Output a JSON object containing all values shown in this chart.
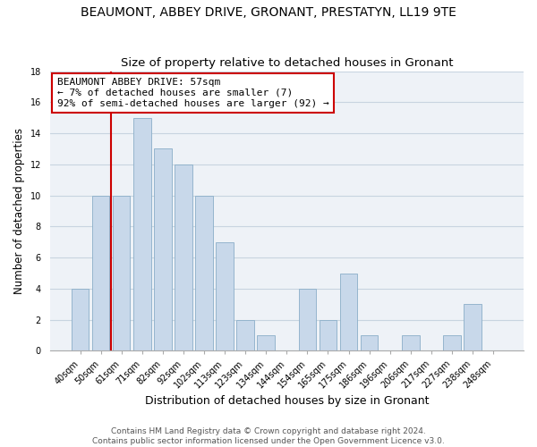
{
  "title": "BEAUMONT, ABBEY DRIVE, GRONANT, PRESTATYN, LL19 9TE",
  "subtitle": "Size of property relative to detached houses in Gronant",
  "xlabel": "Distribution of detached houses by size in Gronant",
  "ylabel": "Number of detached properties",
  "bar_labels": [
    "40sqm",
    "50sqm",
    "61sqm",
    "71sqm",
    "82sqm",
    "92sqm",
    "102sqm",
    "113sqm",
    "123sqm",
    "134sqm",
    "144sqm",
    "154sqm",
    "165sqm",
    "175sqm",
    "186sqm",
    "196sqm",
    "206sqm",
    "217sqm",
    "227sqm",
    "238sqm",
    "248sqm"
  ],
  "bar_values": [
    4,
    10,
    10,
    15,
    13,
    12,
    10,
    7,
    2,
    1,
    0,
    4,
    2,
    5,
    1,
    0,
    1,
    0,
    1,
    3,
    0
  ],
  "bar_color": "#c8d8ea",
  "bar_edge_color": "#8aaec8",
  "annotation_box_text": "BEAUMONT ABBEY DRIVE: 57sqm\n← 7% of detached houses are smaller (7)\n92% of semi-detached houses are larger (92) →",
  "annotation_box_color": "#ffffff",
  "annotation_box_edge_color": "#cc0000",
  "vline_color": "#cc0000",
  "vline_x": 1.5,
  "ylim": [
    0,
    18
  ],
  "yticks": [
    0,
    2,
    4,
    6,
    8,
    10,
    12,
    14,
    16,
    18
  ],
  "grid_color": "#c8d4e0",
  "background_color": "#eef2f7",
  "footer_text": "Contains HM Land Registry data © Crown copyright and database right 2024.\nContains public sector information licensed under the Open Government Licence v3.0.",
  "title_fontsize": 10,
  "subtitle_fontsize": 9.5,
  "xlabel_fontsize": 9,
  "ylabel_fontsize": 8.5,
  "tick_fontsize": 7,
  "annotation_fontsize": 8,
  "footer_fontsize": 6.5
}
